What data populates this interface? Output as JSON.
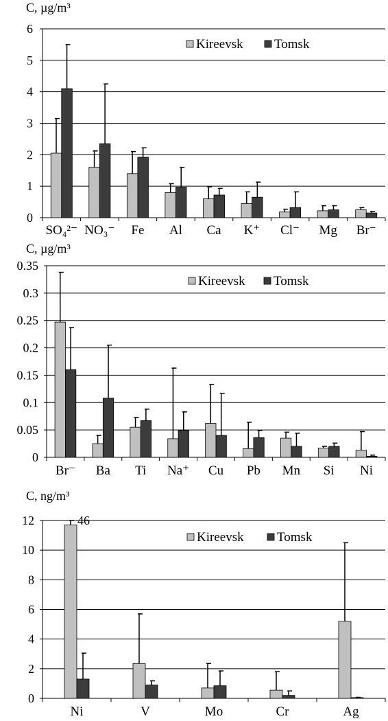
{
  "colors": {
    "kireevsk": "#c0c0c0",
    "tomsk": "#3c3c3c",
    "grid": "#000000"
  },
  "chart_data": [
    {
      "type": "bar",
      "ylabel": "C, µg/m³",
      "ylim": [
        0,
        6
      ],
      "yticks": [
        "0",
        "1",
        "2",
        "3",
        "4",
        "5",
        "6"
      ],
      "categories": [
        "SO₄²⁻",
        "NO₃⁻",
        "Fe",
        "Al",
        "Ca",
        "K⁺",
        "Cl⁻",
        "Mg",
        "Br⁻"
      ],
      "legend": [
        "Kireevsk",
        "Tomsk"
      ],
      "legend_position": "top-right",
      "grid": true,
      "series": [
        {
          "name": "Kireevsk",
          "values": [
            2.05,
            1.6,
            1.4,
            0.8,
            0.6,
            0.45,
            0.18,
            0.22,
            0.25
          ],
          "err": [
            3.15,
            2.12,
            2.1,
            1.08,
            0.98,
            0.82,
            0.27,
            0.38,
            0.32
          ]
        },
        {
          "name": "Tomsk",
          "values": [
            4.1,
            2.35,
            1.92,
            0.97,
            0.72,
            0.65,
            0.32,
            0.25,
            0.15
          ],
          "err": [
            5.5,
            4.25,
            2.22,
            1.6,
            0.93,
            1.13,
            0.82,
            0.38,
            0.2
          ]
        }
      ]
    },
    {
      "type": "bar",
      "ylabel": "C, µg/m³",
      "ylim": [
        0,
        0.35
      ],
      "yticks": [
        "0",
        "0.05",
        "0.1",
        "0.15",
        "0.2",
        "0.25",
        "0.3",
        "0.35"
      ],
      "categories": [
        "Br⁻",
        "Ba",
        "Ti",
        "Na⁺",
        "Cu",
        "Pb",
        "Mn",
        "Si",
        "Ni"
      ],
      "legend": [
        "Kireevsk",
        "Tomsk"
      ],
      "legend_position": "top-right",
      "grid": true,
      "series": [
        {
          "name": "Kireevsk",
          "values": [
            0.247,
            0.025,
            0.055,
            0.034,
            0.062,
            0.016,
            0.035,
            0.017,
            0.013
          ],
          "err": [
            0.338,
            0.04,
            0.073,
            0.163,
            0.133,
            0.064,
            0.046,
            0.02,
            0.047
          ]
        },
        {
          "name": "Tomsk",
          "values": [
            0.16,
            0.108,
            0.067,
            0.049,
            0.04,
            0.036,
            0.02,
            0.02,
            0.002
          ],
          "err": [
            0.237,
            0.205,
            0.088,
            0.083,
            0.117,
            0.049,
            0.044,
            0.026,
            0.004
          ]
        }
      ]
    },
    {
      "type": "bar",
      "ylabel": "C, ng/m³",
      "ylim": [
        0,
        12
      ],
      "yticks": [
        "0",
        "2",
        "4",
        "6",
        "8",
        "10",
        "12"
      ],
      "categories": [
        "Ni",
        "V",
        "Mo",
        "Cr",
        "Ag"
      ],
      "legend": [
        "Kireevsk",
        "Tomsk"
      ],
      "legend_position": "top-right",
      "grid": true,
      "annotation": "46",
      "series": [
        {
          "name": "Kireevsk",
          "values": [
            11.7,
            2.35,
            0.7,
            0.55,
            5.2
          ],
          "err": [
            12,
            5.7,
            2.35,
            1.8,
            10.5
          ]
        },
        {
          "name": "Tomsk",
          "values": [
            1.3,
            0.9,
            0.85,
            0.2,
            0.05
          ],
          "err": [
            3.05,
            1.18,
            1.85,
            0.5,
            0.07
          ]
        }
      ]
    }
  ]
}
